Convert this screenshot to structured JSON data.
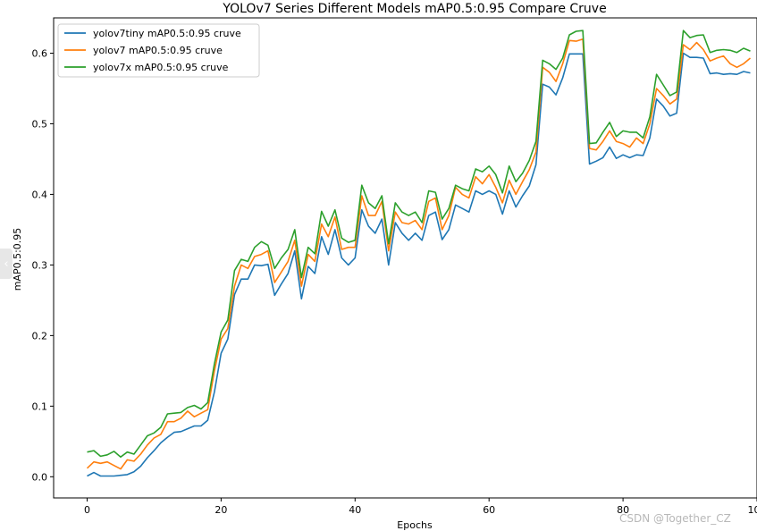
{
  "page": {
    "back_icon": "chevron-left-icon",
    "back_glyph": "‹"
  },
  "watermark": "CSDN @Together_CZ",
  "chart_data": {
    "type": "line",
    "title": "YOLOv7 Series Different Models mAP0.5:0.95 Compare Cruve",
    "xlabel": "Epochs",
    "ylabel": "mAP0.5:0.95",
    "xlim": [
      -5,
      100
    ],
    "ylim": [
      -0.03,
      0.65
    ],
    "xticks": [
      0,
      20,
      40,
      60,
      80,
      100
    ],
    "xtick_labels": [
      "0",
      "20",
      "40",
      "60",
      "80",
      "100"
    ],
    "yticks": [
      0.0,
      0.1,
      0.2,
      0.3,
      0.4,
      0.5,
      0.6
    ],
    "ytick_labels": [
      "0.0",
      "0.1",
      "0.2",
      "0.3",
      "0.4",
      "0.5",
      "0.6"
    ],
    "grid": false,
    "legend_position": "top-left",
    "x": [
      0,
      1,
      2,
      3,
      4,
      5,
      6,
      7,
      8,
      9,
      10,
      11,
      12,
      13,
      14,
      15,
      16,
      17,
      18,
      19,
      20,
      21,
      22,
      23,
      24,
      25,
      26,
      27,
      28,
      29,
      30,
      31,
      32,
      33,
      34,
      35,
      36,
      37,
      38,
      39,
      40,
      41,
      42,
      43,
      44,
      45,
      46,
      47,
      48,
      49,
      50,
      51,
      52,
      53,
      54,
      55,
      56,
      57,
      58,
      59,
      60,
      61,
      62,
      63,
      64,
      65,
      66,
      67,
      68,
      69,
      70,
      71,
      72,
      73,
      74,
      75,
      76,
      77,
      78,
      79,
      80,
      81,
      82,
      83,
      84,
      85,
      86,
      87,
      88,
      89,
      90,
      91,
      92,
      93,
      94,
      95,
      96,
      97,
      98,
      99
    ],
    "series": [
      {
        "name": "yolov7tiny mAP0.5:0.95 cruve",
        "color": "#1f77b4",
        "values": [
          0.001,
          0.006,
          0.001,
          0.001,
          0.001,
          0.002,
          0.003,
          0.007,
          0.015,
          0.027,
          0.037,
          0.048,
          0.056,
          0.063,
          0.064,
          0.068,
          0.072,
          0.072,
          0.08,
          0.12,
          0.175,
          0.195,
          0.258,
          0.28,
          0.28,
          0.3,
          0.299,
          0.301,
          0.257,
          0.273,
          0.288,
          0.32,
          0.252,
          0.298,
          0.288,
          0.34,
          0.315,
          0.35,
          0.31,
          0.3,
          0.31,
          0.378,
          0.355,
          0.345,
          0.365,
          0.3,
          0.36,
          0.345,
          0.335,
          0.345,
          0.335,
          0.37,
          0.375,
          0.336,
          0.35,
          0.385,
          0.38,
          0.375,
          0.405,
          0.4,
          0.405,
          0.4,
          0.372,
          0.405,
          0.382,
          0.398,
          0.412,
          0.442,
          0.556,
          0.552,
          0.541,
          0.565,
          0.599,
          0.599,
          0.599,
          0.443,
          0.447,
          0.452,
          0.467,
          0.451,
          0.456,
          0.452,
          0.456,
          0.455,
          0.48,
          0.535,
          0.525,
          0.511,
          0.515,
          0.6,
          0.594,
          0.594,
          0.593,
          0.571,
          0.572,
          0.57,
          0.571,
          0.57,
          0.574,
          0.572
        ]
      },
      {
        "name": "yolov7  mAP0.5:0.95 cruve",
        "color": "#ff7f0e",
        "values": [
          0.012,
          0.021,
          0.019,
          0.021,
          0.016,
          0.011,
          0.024,
          0.022,
          0.032,
          0.045,
          0.055,
          0.06,
          0.078,
          0.078,
          0.083,
          0.093,
          0.085,
          0.09,
          0.095,
          0.15,
          0.195,
          0.21,
          0.27,
          0.3,
          0.295,
          0.312,
          0.315,
          0.32,
          0.275,
          0.29,
          0.305,
          0.335,
          0.27,
          0.315,
          0.305,
          0.358,
          0.34,
          0.368,
          0.322,
          0.325,
          0.325,
          0.398,
          0.37,
          0.37,
          0.39,
          0.32,
          0.375,
          0.36,
          0.358,
          0.363,
          0.35,
          0.39,
          0.395,
          0.35,
          0.37,
          0.41,
          0.4,
          0.395,
          0.425,
          0.415,
          0.428,
          0.41,
          0.388,
          0.42,
          0.4,
          0.418,
          0.435,
          0.46,
          0.58,
          0.573,
          0.56,
          0.585,
          0.618,
          0.617,
          0.62,
          0.465,
          0.463,
          0.475,
          0.49,
          0.475,
          0.472,
          0.467,
          0.48,
          0.472,
          0.5,
          0.55,
          0.54,
          0.528,
          0.535,
          0.612,
          0.605,
          0.615,
          0.605,
          0.589,
          0.593,
          0.596,
          0.585,
          0.58,
          0.585,
          0.593
        ]
      },
      {
        "name": "yolov7x  mAP0.5:0.95 cruve",
        "color": "#2ca02c",
        "values": [
          0.035,
          0.037,
          0.029,
          0.031,
          0.036,
          0.028,
          0.035,
          0.032,
          0.045,
          0.058,
          0.062,
          0.07,
          0.089,
          0.09,
          0.091,
          0.098,
          0.101,
          0.096,
          0.105,
          0.16,
          0.205,
          0.222,
          0.292,
          0.308,
          0.305,
          0.325,
          0.333,
          0.328,
          0.295,
          0.31,
          0.322,
          0.35,
          0.282,
          0.325,
          0.316,
          0.376,
          0.355,
          0.378,
          0.338,
          0.332,
          0.335,
          0.413,
          0.388,
          0.38,
          0.398,
          0.33,
          0.388,
          0.375,
          0.37,
          0.375,
          0.36,
          0.405,
          0.403,
          0.365,
          0.38,
          0.413,
          0.408,
          0.405,
          0.436,
          0.432,
          0.44,
          0.428,
          0.402,
          0.44,
          0.418,
          0.43,
          0.448,
          0.475,
          0.59,
          0.585,
          0.577,
          0.593,
          0.626,
          0.631,
          0.632,
          0.472,
          0.473,
          0.488,
          0.502,
          0.482,
          0.49,
          0.488,
          0.488,
          0.48,
          0.51,
          0.57,
          0.555,
          0.54,
          0.545,
          0.632,
          0.622,
          0.625,
          0.626,
          0.601,
          0.604,
          0.605,
          0.604,
          0.601,
          0.607,
          0.603
        ]
      }
    ]
  }
}
